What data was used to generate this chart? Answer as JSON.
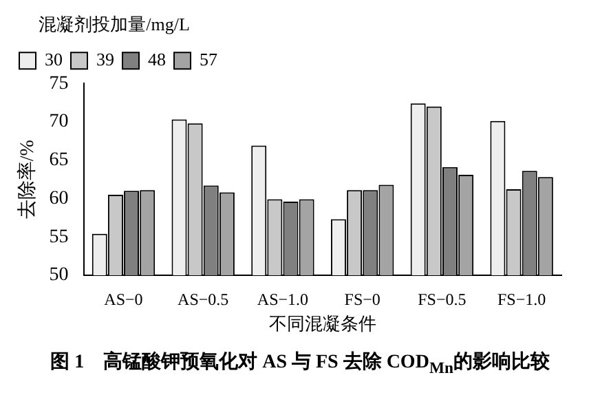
{
  "chart_data": {
    "type": "bar",
    "title": "图 1　高锰酸钾预氧化对 AS 与 FS 去除 COD$_{Mn}$的影响比较",
    "xlabel": "不同混凝条件",
    "ylabel": "去除率/%",
    "legend_title": "混凝剂投加量/mg/L",
    "legend": "top",
    "categories": [
      "AS−0",
      "AS−0.5",
      "AS−1.0",
      "FS−0",
      "FS−0.5",
      "FS−1.0"
    ],
    "series": [
      {
        "name": "30",
        "color": "#eeeeee",
        "values": [
          55.4,
          70.3,
          66.9,
          57.3,
          72.4,
          70.1
        ]
      },
      {
        "name": "39",
        "color": "#c8c8c8",
        "values": [
          60.5,
          69.8,
          59.9,
          61.1,
          72.0,
          61.2
        ]
      },
      {
        "name": "48",
        "color": "#808080",
        "values": [
          61.0,
          61.7,
          59.6,
          61.1,
          64.1,
          63.6
        ]
      },
      {
        "name": "57",
        "color": "#a4a4a4",
        "values": [
          61.1,
          60.8,
          59.9,
          61.8,
          63.1,
          62.8
        ]
      }
    ],
    "ylim": [
      50,
      75
    ],
    "yticks": [
      50,
      55,
      60,
      65,
      70,
      75
    ],
    "grid": false
  }
}
